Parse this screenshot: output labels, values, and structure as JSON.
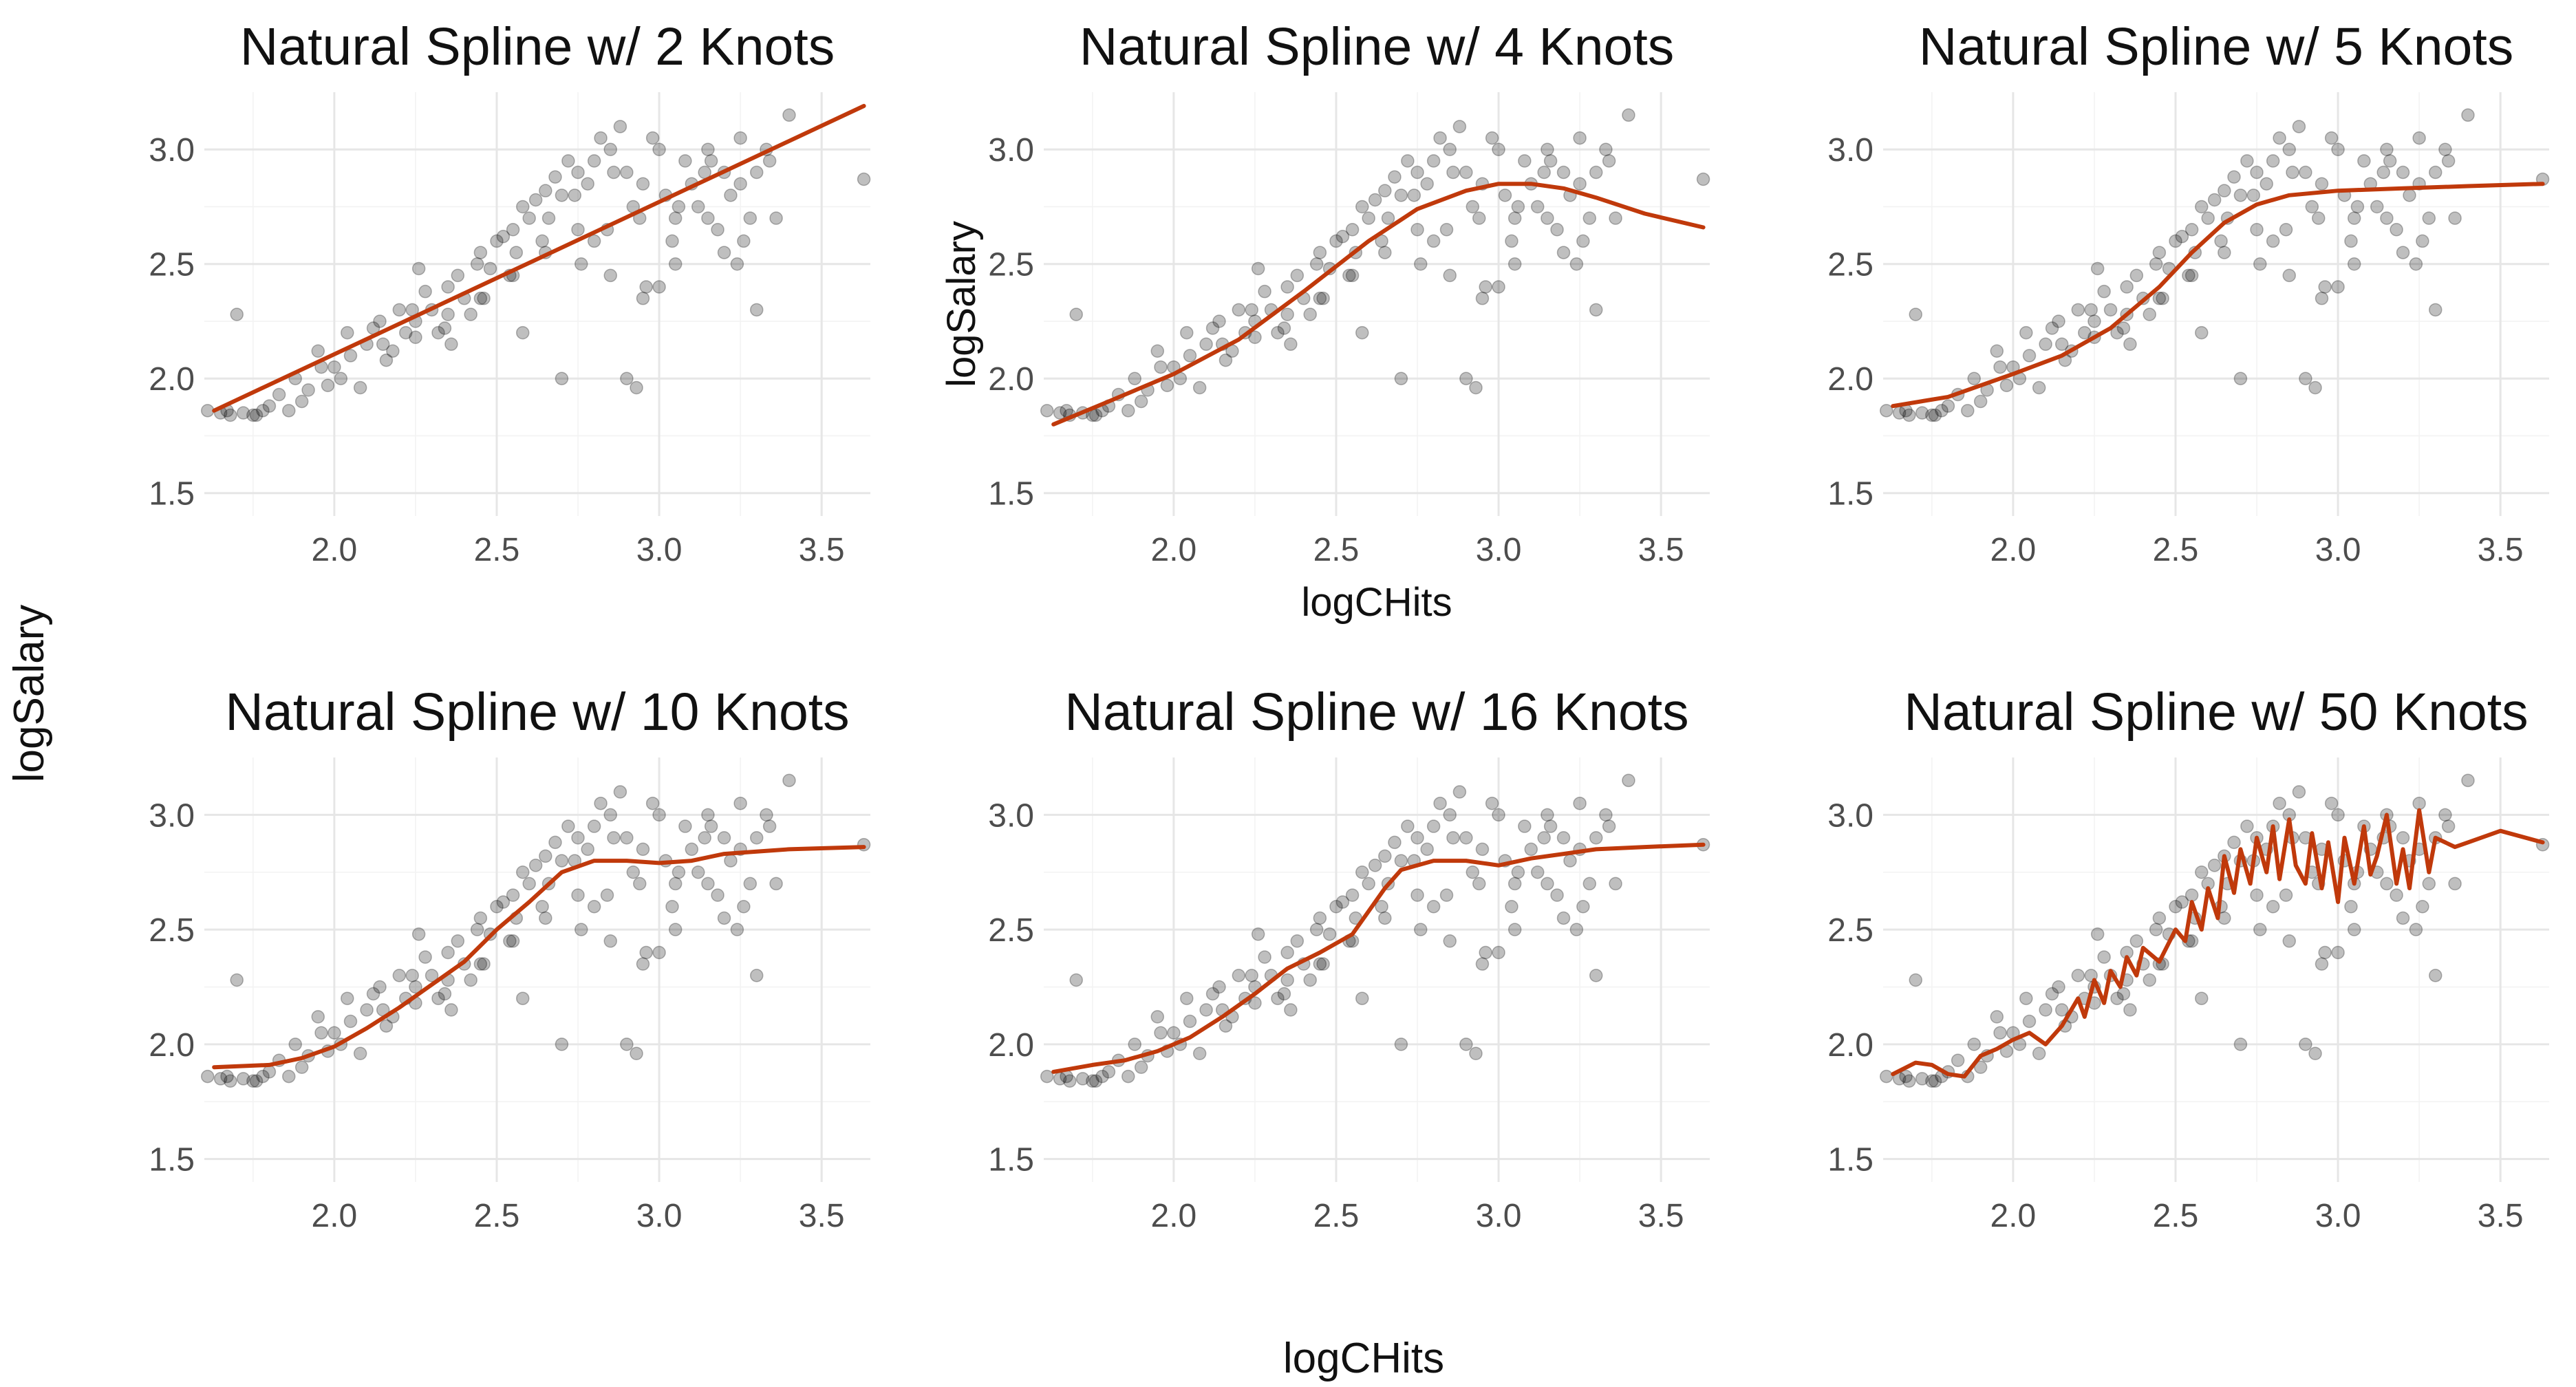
{
  "chart_data": {
    "type": "scatter",
    "global_xlabel": "logCHits",
    "global_ylabel": "logSalary",
    "line_color": "#c0390b",
    "point_color": "#000000",
    "xlim": [
      1.6,
      3.65
    ],
    "ylim": [
      1.4,
      3.25
    ],
    "x_ticks": [
      2.0,
      2.5,
      3.0,
      3.5
    ],
    "x_tick_labels": [
      "2.0",
      "2.5",
      "3.0",
      "3.5"
    ],
    "y_ticks": [
      1.5,
      2.0,
      2.5,
      3.0
    ],
    "y_tick_labels": [
      "1.5",
      "2.0",
      "2.5",
      "3.0"
    ],
    "points": {
      "x": [
        1.61,
        1.68,
        1.7,
        1.72,
        1.75,
        1.78,
        1.8,
        1.86,
        1.9,
        1.92,
        1.95,
        1.98,
        2.0,
        2.02,
        2.05,
        2.08,
        2.1,
        2.12,
        2.15,
        2.18,
        2.2,
        2.22,
        2.25,
        2.28,
        2.3,
        2.32,
        2.35,
        2.38,
        2.4,
        2.42,
        2.45,
        2.48,
        2.5,
        2.52,
        2.55,
        2.58,
        2.6,
        2.62,
        2.65,
        2.68,
        2.7,
        2.72,
        2.75,
        2.78,
        2.8,
        2.82,
        2.85,
        2.88,
        2.9,
        2.92,
        2.95,
        2.98,
        3.0,
        3.02,
        3.05,
        3.08,
        3.1,
        3.12,
        3.15,
        3.18,
        3.2,
        3.22,
        3.25,
        3.28,
        3.3,
        3.33,
        3.36,
        3.4,
        3.63,
        1.65,
        1.76,
        1.83,
        1.88,
        1.96,
        2.04,
        2.14,
        2.24,
        2.34,
        2.44,
        2.54,
        2.64,
        2.74,
        2.84,
        2.94,
        3.04,
        3.14,
        3.24,
        3.34,
        2.16,
        2.26,
        2.36,
        2.46,
        2.56,
        2.66,
        2.76,
        2.86,
        2.96,
        3.06,
        3.16,
        3.26,
        1.67,
        2.7,
        2.9,
        2.93,
        2.58,
        2.8,
        3.0,
        3.2,
        3.3,
        2.85,
        2.95,
        3.05,
        3.15,
        3.25,
        2.75,
        2.65,
        2.55,
        2.45,
        2.35,
        2.25
      ],
      "y": [
        1.86,
        1.84,
        2.28,
        1.85,
        1.84,
        1.86,
        1.88,
        1.86,
        1.9,
        1.95,
        2.12,
        1.97,
        2.05,
        2.0,
        2.1,
        1.96,
        2.15,
        2.22,
        2.15,
        2.12,
        2.3,
        2.2,
        2.25,
        2.38,
        2.3,
        2.2,
        2.4,
        2.45,
        2.35,
        2.28,
        2.55,
        2.48,
        2.6,
        2.62,
        2.65,
        2.75,
        2.7,
        2.78,
        2.82,
        2.88,
        2.8,
        2.95,
        2.9,
        2.85,
        2.95,
        3.05,
        3.0,
        3.1,
        2.9,
        2.75,
        2.85,
        3.05,
        3.0,
        2.8,
        2.7,
        2.95,
        2.85,
        2.75,
        3.0,
        2.65,
        2.9,
        2.8,
        3.05,
        2.7,
        2.9,
        3.0,
        2.7,
        3.15,
        2.87,
        1.85,
        1.84,
        1.93,
        2.0,
        2.05,
        2.2,
        2.25,
        2.3,
        2.22,
        2.5,
        2.45,
        2.6,
        2.8,
        2.65,
        2.7,
        2.6,
        2.9,
        2.5,
        2.95,
        2.08,
        2.48,
        2.15,
        2.35,
        2.55,
        2.7,
        2.5,
        2.9,
        2.4,
        2.75,
        2.95,
        2.6,
        1.86,
        2.0,
        2.0,
        1.96,
        2.2,
        2.6,
        2.4,
        2.55,
        2.3,
        2.45,
        2.35,
        2.5,
        2.7,
        2.85,
        2.65,
        2.55,
        2.45,
        2.35,
        2.28,
        2.18
      ]
    },
    "panels": [
      {
        "title": "Natural Spline w/ 2 Knots",
        "xlabel": "",
        "ylabel": "",
        "fit": {
          "x": [
            1.63,
            3.63
          ],
          "y": [
            1.86,
            3.19
          ]
        }
      },
      {
        "title": "Natural Spline w/ 4 Knots",
        "xlabel": "logCHits",
        "ylabel": "logSalary",
        "fit": {
          "x": [
            1.63,
            1.8,
            2.0,
            2.2,
            2.4,
            2.6,
            2.75,
            2.9,
            3.0,
            3.1,
            3.2,
            3.3,
            3.45,
            3.63
          ],
          "y": [
            1.8,
            1.9,
            2.02,
            2.17,
            2.38,
            2.6,
            2.74,
            2.82,
            2.85,
            2.85,
            2.83,
            2.79,
            2.72,
            2.66
          ]
        }
      },
      {
        "title": "Natural Spline w/ 5 Knots",
        "xlabel": "",
        "ylabel": "",
        "fit": {
          "x": [
            1.63,
            1.8,
            2.0,
            2.15,
            2.3,
            2.45,
            2.55,
            2.65,
            2.75,
            2.85,
            3.0,
            3.2,
            3.4,
            3.63
          ],
          "y": [
            1.88,
            1.92,
            2.02,
            2.1,
            2.22,
            2.4,
            2.55,
            2.68,
            2.76,
            2.8,
            2.82,
            2.83,
            2.84,
            2.85
          ]
        }
      },
      {
        "title": "Natural Spline w/ 10 Knots",
        "xlabel": "",
        "ylabel": "",
        "fit": {
          "x": [
            1.63,
            1.8,
            1.9,
            2.0,
            2.1,
            2.2,
            2.3,
            2.4,
            2.5,
            2.6,
            2.7,
            2.8,
            2.9,
            3.0,
            3.1,
            3.2,
            3.3,
            3.4,
            3.63
          ],
          "y": [
            1.9,
            1.91,
            1.94,
            1.99,
            2.07,
            2.16,
            2.26,
            2.36,
            2.5,
            2.62,
            2.75,
            2.8,
            2.8,
            2.79,
            2.8,
            2.83,
            2.84,
            2.85,
            2.86
          ]
        }
      },
      {
        "title": "Natural Spline w/ 16 Knots",
        "xlabel": "",
        "ylabel": "",
        "fit": {
          "x": [
            1.63,
            1.75,
            1.85,
            1.95,
            2.05,
            2.15,
            2.25,
            2.35,
            2.45,
            2.55,
            2.65,
            2.7,
            2.8,
            2.9,
            3.0,
            3.1,
            3.2,
            3.3,
            3.45,
            3.63
          ],
          "y": [
            1.88,
            1.91,
            1.93,
            1.97,
            2.03,
            2.12,
            2.22,
            2.33,
            2.4,
            2.48,
            2.68,
            2.76,
            2.8,
            2.8,
            2.78,
            2.81,
            2.83,
            2.85,
            2.86,
            2.87
          ]
        }
      },
      {
        "title": "Natural Spline w/ 50 Knots",
        "xlabel": "",
        "ylabel": "",
        "fit": {
          "x": [
            1.63,
            1.7,
            1.75,
            1.8,
            1.85,
            1.9,
            1.95,
            2.0,
            2.05,
            2.1,
            2.15,
            2.2,
            2.22,
            2.25,
            2.28,
            2.3,
            2.33,
            2.35,
            2.38,
            2.4,
            2.45,
            2.5,
            2.53,
            2.55,
            2.58,
            2.6,
            2.63,
            2.65,
            2.68,
            2.7,
            2.73,
            2.75,
            2.78,
            2.8,
            2.82,
            2.85,
            2.87,
            2.9,
            2.92,
            2.95,
            2.97,
            3.0,
            3.02,
            3.05,
            3.08,
            3.1,
            3.12,
            3.15,
            3.18,
            3.2,
            3.22,
            3.25,
            3.28,
            3.3,
            3.33,
            3.36,
            3.4,
            3.5,
            3.63
          ],
          "y": [
            1.87,
            1.92,
            1.91,
            1.87,
            1.86,
            1.95,
            1.98,
            2.02,
            2.05,
            2.0,
            2.08,
            2.2,
            2.12,
            2.28,
            2.18,
            2.32,
            2.25,
            2.38,
            2.3,
            2.42,
            2.36,
            2.5,
            2.45,
            2.62,
            2.5,
            2.68,
            2.55,
            2.82,
            2.66,
            2.85,
            2.7,
            2.9,
            2.75,
            2.95,
            2.72,
            2.98,
            2.78,
            2.7,
            2.92,
            2.68,
            2.88,
            2.62,
            2.9,
            2.7,
            2.95,
            2.74,
            2.82,
            3.0,
            2.7,
            2.85,
            2.68,
            3.02,
            2.75,
            2.9,
            2.88,
            2.86,
            2.88,
            2.93,
            2.88
          ]
        }
      }
    ]
  }
}
